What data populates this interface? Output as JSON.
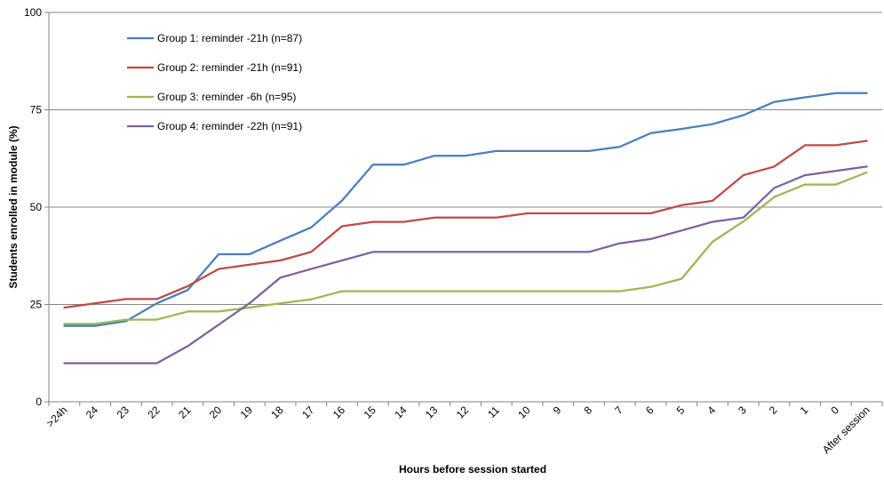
{
  "chart_data": {
    "type": "line",
    "title": "",
    "xlabel": "Hours before session started",
    "ylabel": "Students enrolled in module (%)",
    "ylim": [
      0,
      100
    ],
    "yticks": [
      0,
      25,
      50,
      75,
      100
    ],
    "grid": "horizontal",
    "legend_position": "top-left",
    "categories": [
      ">24h",
      "24",
      "23",
      "22",
      "21",
      "20",
      "19",
      "18",
      "17",
      "16",
      "15",
      "14",
      "13",
      "12",
      "11",
      "10",
      "9",
      "8",
      "7",
      "6",
      "5",
      "4",
      "3",
      "2",
      "1",
      "0",
      "After session"
    ],
    "series": [
      {
        "name": "Group 1: reminder -21h (n=87)",
        "color": "#4a7ebb",
        "values": [
          19.5,
          19.5,
          20.7,
          25.3,
          28.7,
          37.9,
          37.9,
          41.4,
          44.8,
          51.7,
          60.9,
          60.9,
          63.2,
          63.2,
          64.4,
          64.4,
          64.4,
          64.4,
          65.5,
          69.0,
          70.1,
          71.3,
          73.6,
          77.0,
          78.2,
          79.3,
          79.3
        ]
      },
      {
        "name": "Group 2: reminder -21h (n=91)",
        "color": "#be4b48",
        "values": [
          24.2,
          25.3,
          26.4,
          26.4,
          29.7,
          34.1,
          35.2,
          36.3,
          38.5,
          45.1,
          46.2,
          46.2,
          47.3,
          47.3,
          47.3,
          48.4,
          48.4,
          48.4,
          48.4,
          48.4,
          50.5,
          51.6,
          58.2,
          60.4,
          65.9,
          65.9,
          67.0
        ]
      },
      {
        "name": "Group 3: reminder -6h (n=95)",
        "color": "#98b954",
        "values": [
          20.0,
          20.0,
          21.1,
          21.1,
          23.2,
          23.2,
          24.2,
          25.3,
          26.3,
          28.4,
          28.4,
          28.4,
          28.4,
          28.4,
          28.4,
          28.4,
          28.4,
          28.4,
          28.4,
          29.5,
          31.6,
          41.1,
          46.3,
          52.6,
          55.8,
          55.8,
          58.9
        ]
      },
      {
        "name": "Group 4: reminder -22h  (n=91)",
        "color": "#7d60a0",
        "values": [
          9.9,
          9.9,
          9.9,
          9.9,
          14.3,
          19.8,
          25.3,
          31.9,
          34.1,
          36.3,
          38.5,
          38.5,
          38.5,
          38.5,
          38.5,
          38.5,
          38.5,
          38.5,
          40.7,
          41.8,
          44.0,
          46.2,
          47.3,
          54.9,
          58.2,
          59.3,
          60.4
        ]
      }
    ]
  }
}
